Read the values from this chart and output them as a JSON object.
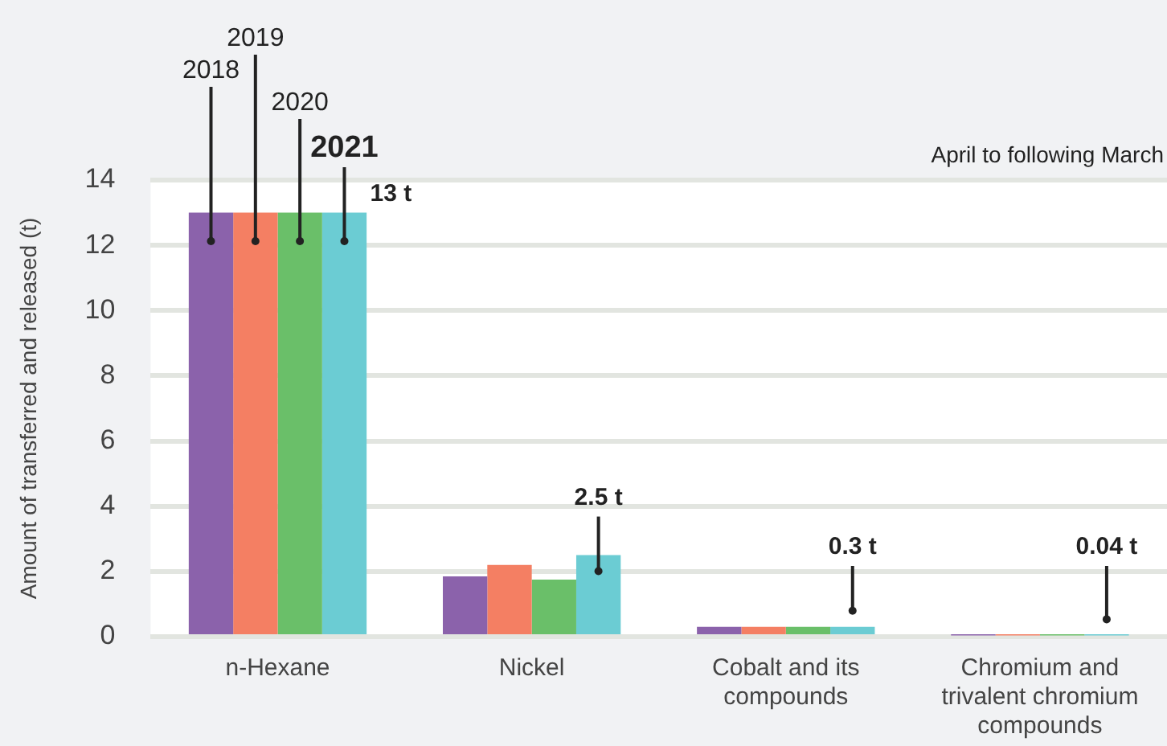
{
  "chart_data": {
    "type": "bar",
    "ylabel": "Amount of transferred and released (t)",
    "annotations": [
      "April to following March"
    ],
    "categories": [
      "n-Hexane",
      "Nickel",
      "Cobalt and its compounds",
      "Chromium and trivalent chromium compounds"
    ],
    "series": [
      {
        "name": "2018",
        "color": "#8b62ab",
        "values": [
          13,
          1.85,
          0.3,
          0.04
        ]
      },
      {
        "name": "2019",
        "color": "#f47f63",
        "values": [
          13,
          2.2,
          0.3,
          0.04
        ]
      },
      {
        "name": "2020",
        "color": "#6abf69",
        "values": [
          13,
          1.75,
          0.3,
          0.04
        ]
      },
      {
        "name": "2021",
        "color": "#6bccd3",
        "values": [
          13,
          2.5,
          0.3,
          0.04
        ],
        "value_labels": [
          "13 t",
          "2.5 t",
          "0.3 t",
          "0.04 t"
        ]
      }
    ],
    "ylim": [
      0,
      14
    ],
    "yticks": [
      0,
      2,
      4,
      6,
      8,
      10,
      12,
      14
    ],
    "grid": "y",
    "legend": false
  }
}
